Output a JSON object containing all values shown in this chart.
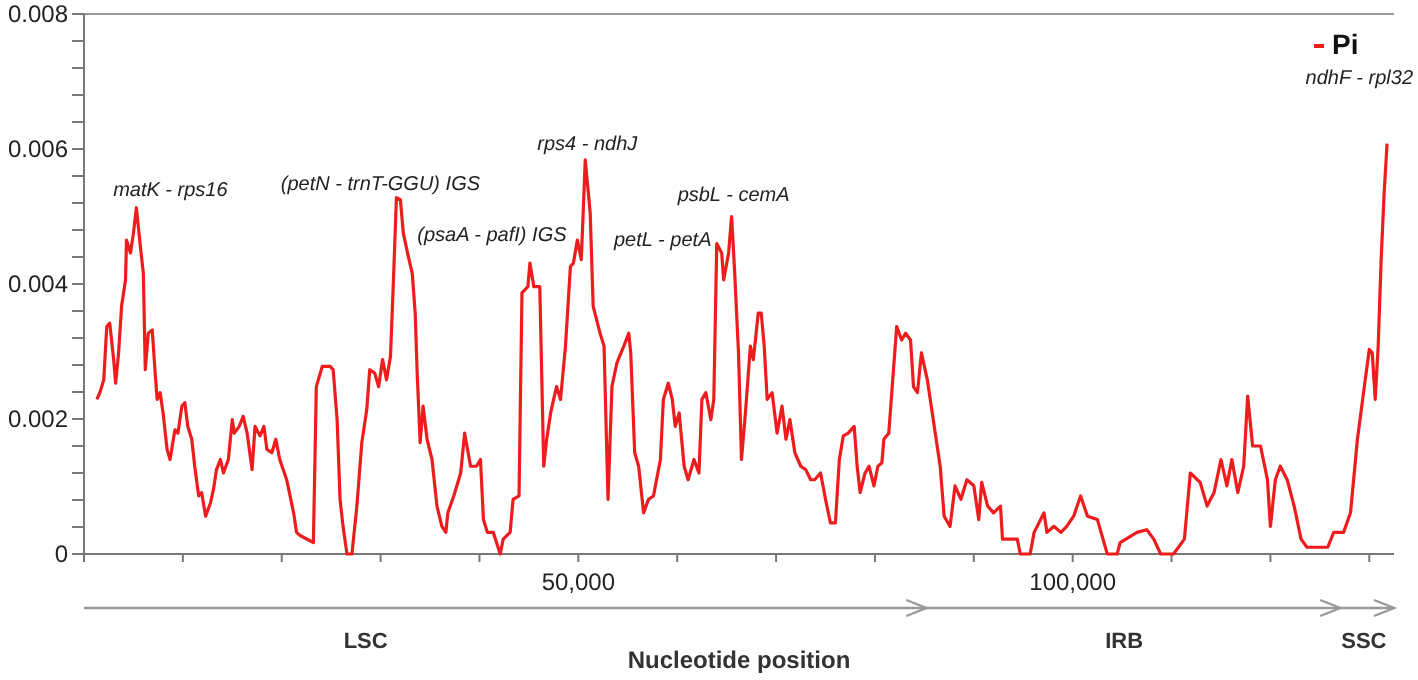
{
  "chart_data": {
    "type": "line",
    "xlabel": "Nucleotide position",
    "xlim": [
      0,
      132500
    ],
    "ylim": [
      0,
      0.008
    ],
    "xticks": [
      {
        "value": 0,
        "label": null
      },
      {
        "value": 10000,
        "label": null
      },
      {
        "value": 20000,
        "label": null
      },
      {
        "value": 30000,
        "label": null
      },
      {
        "value": 40000,
        "label": null
      },
      {
        "value": 50000,
        "label": "50,000"
      },
      {
        "value": 60000,
        "label": null
      },
      {
        "value": 70000,
        "label": null
      },
      {
        "value": 80000,
        "label": null
      },
      {
        "value": 90000,
        "label": null
      },
      {
        "value": 100000,
        "label": "100,000"
      },
      {
        "value": 110000,
        "label": null
      },
      {
        "value": 120000,
        "label": null
      },
      {
        "value": 130000,
        "label": null
      }
    ],
    "yticks": [
      0,
      {
        "value": 0.0004,
        "label": null
      },
      {
        "value": 0.0008,
        "label": null
      },
      {
        "value": 0.0012,
        "label": null
      },
      {
        "value": 0.0016,
        "label": null
      },
      0.002,
      {
        "value": 0.0024,
        "label": null
      },
      {
        "value": 0.0028,
        "label": null
      },
      {
        "value": 0.0032,
        "label": null
      },
      {
        "value": 0.0036,
        "label": null
      },
      0.004,
      {
        "value": 0.0044,
        "label": null
      },
      {
        "value": 0.0048,
        "label": null
      },
      {
        "value": 0.0052,
        "label": null
      },
      {
        "value": 0.0056,
        "label": null
      },
      0.006,
      {
        "value": 0.0064,
        "label": null
      },
      {
        "value": 0.0068,
        "label": null
      },
      {
        "value": 0.0072,
        "label": null
      },
      {
        "value": 0.0076,
        "label": null
      },
      0.008
    ],
    "grid": false,
    "legend": "top right",
    "marker": "none",
    "line_style": "solid",
    "series": [
      {
        "name": "Pi",
        "color": "#ee1c1c",
        "x": [
          1300,
          1600,
          2000,
          2300,
          2600,
          3000,
          3200,
          3500,
          3800,
          4200,
          4300,
          4700,
          5000,
          5300,
          5700,
          6000,
          6200,
          6500,
          6900,
          7200,
          7400,
          7700,
          8000,
          8400,
          8700,
          9200,
          9500,
          9900,
          10200,
          10500,
          10900,
          11200,
          11600,
          11900,
          12300,
          12800,
          13100,
          13400,
          13800,
          14100,
          14600,
          15000,
          15200,
          15700,
          16100,
          16500,
          17000,
          17300,
          17800,
          18200,
          18500,
          19000,
          19400,
          19800,
          20500,
          21200,
          21500,
          21900,
          23200,
          23500,
          24100,
          24900,
          25200,
          25600,
          25900,
          26200,
          26600,
          27100,
          27600,
          28100,
          28600,
          28900,
          29400,
          29800,
          30200,
          30600,
          31000,
          31300,
          31600,
          32000,
          32300,
          32800,
          33200,
          33500,
          33700,
          34000,
          34300,
          34700,
          35200,
          35700,
          36200,
          36600,
          36800,
          37400,
          38100,
          38500,
          39100,
          39700,
          40100,
          40400,
          40800,
          41400,
          42100,
          42400,
          43100,
          43400,
          44000,
          44300,
          44900,
          45100,
          45500,
          46100,
          46500,
          46800,
          47200,
          47500,
          47800,
          48200,
          48700,
          49200,
          49500,
          49900,
          50300,
          50700,
          51200,
          51500,
          52200,
          52600,
          53000,
          53400,
          53900,
          54600,
          55100,
          55300,
          55700,
          56100,
          56600,
          57100,
          57600,
          58300,
          58600,
          59100,
          59500,
          59800,
          60200,
          60700,
          61100,
          61700,
          62200,
          62500,
          62900,
          63400,
          63700,
          64000,
          64500,
          64700,
          65200,
          65500,
          65800,
          66200,
          66500,
          66900,
          67400,
          67700,
          68200,
          68500,
          68800,
          69100,
          69600,
          70100,
          70600,
          71000,
          71400,
          71900,
          72500,
          73000,
          73500,
          73900,
          74500,
          75000,
          75500,
          76000,
          76400,
          76800,
          77300,
          77900,
          78200,
          78500,
          79000,
          79400,
          79900,
          80300,
          80700,
          80900,
          81400,
          81900,
          82200,
          82700,
          83100,
          83600,
          83900,
          84300,
          84700,
          85300,
          86000,
          86600,
          87000,
          87600,
          88100,
          88700,
          89300,
          90000,
          90500,
          90800,
          91400,
          92000,
          92700,
          92900,
          94400,
          94700,
          95700,
          96100,
          97100,
          97400,
          98100,
          98800,
          99400,
          100100,
          100800,
          101500,
          102500,
          103500,
          104500,
          104800,
          106500,
          107500,
          108200,
          108900,
          110200,
          111300,
          111900,
          112900,
          113600,
          114300,
          115000,
          115600,
          116100,
          116700,
          117300,
          117700,
          118200,
          119000,
          119700,
          120000,
          120500,
          121000,
          121700,
          122400,
          123100,
          123700,
          124400,
          125800,
          126400,
          127400,
          128100,
          128800,
          129500,
          130000,
          130300,
          130600,
          130900,
          131200,
          131500,
          131800
        ],
        "values": [
          0.00229,
          0.00239,
          0.00258,
          0.00337,
          0.00342,
          0.00288,
          0.00253,
          0.00298,
          0.00367,
          0.00406,
          0.00465,
          0.00446,
          0.00475,
          0.00513,
          0.00456,
          0.00416,
          0.00273,
          0.00327,
          0.00332,
          0.00268,
          0.00229,
          0.00239,
          0.00209,
          0.00155,
          0.0014,
          0.00184,
          0.00179,
          0.00219,
          0.00224,
          0.00189,
          0.0017,
          0.0013,
          0.00086,
          0.00091,
          0.00056,
          0.00076,
          0.00096,
          0.00125,
          0.0014,
          0.0012,
          0.0014,
          0.00199,
          0.00179,
          0.00189,
          0.00204,
          0.00179,
          0.00125,
          0.00189,
          0.00175,
          0.00189,
          0.00155,
          0.0015,
          0.0017,
          0.0014,
          0.0011,
          0.00061,
          0.00032,
          0.00027,
          0.00017,
          0.00248,
          0.00278,
          0.00278,
          0.00273,
          0.00199,
          0.00081,
          0.00041,
          0,
          0,
          0.00071,
          0.00165,
          0.00214,
          0.00273,
          0.00268,
          0.00248,
          0.00288,
          0.00258,
          0.00293,
          0.00406,
          0.00528,
          0.00525,
          0.00475,
          0.00441,
          0.00416,
          0.00357,
          0.00268,
          0.00165,
          0.00219,
          0.0017,
          0.0014,
          0.00071,
          0.00041,
          0.00032,
          0.00061,
          0.00086,
          0.0012,
          0.00179,
          0.0013,
          0.0013,
          0.0014,
          0.00051,
          0.00032,
          0.00032,
          0,
          0.00022,
          0.00032,
          0.00081,
          0.00086,
          0.00387,
          0.00396,
          0.00431,
          0.00396,
          0.00396,
          0.0013,
          0.0017,
          0.00209,
          0.00229,
          0.00248,
          0.00229,
          0.00308,
          0.00426,
          0.00431,
          0.00465,
          0.00436,
          0.00584,
          0.00505,
          0.00367,
          0.00327,
          0.00308,
          0.00081,
          0.00248,
          0.00283,
          0.00308,
          0.00327,
          0.00298,
          0.0015,
          0.0013,
          0.00061,
          0.00081,
          0.00086,
          0.0014,
          0.00229,
          0.00253,
          0.00229,
          0.00189,
          0.00209,
          0.0013,
          0.0011,
          0.0014,
          0.0012,
          0.00229,
          0.00239,
          0.00199,
          0.00229,
          0.0046,
          0.00446,
          0.00406,
          0.00446,
          0.005,
          0.00421,
          0.00298,
          0.0014,
          0.00209,
          0.00308,
          0.00288,
          0.00357,
          0.00357,
          0.00308,
          0.00229,
          0.00239,
          0.00179,
          0.00219,
          0.0017,
          0.00199,
          0.0015,
          0.0013,
          0.00125,
          0.0011,
          0.0011,
          0.0012,
          0.00081,
          0.00046,
          0.00046,
          0.0014,
          0.00175,
          0.00179,
          0.00189,
          0.0013,
          0.00091,
          0.0012,
          0.0013,
          0.00101,
          0.0013,
          0.00135,
          0.0017,
          0.00179,
          0.00278,
          0.00337,
          0.00317,
          0.00327,
          0.00317,
          0.00248,
          0.00239,
          0.00298,
          0.00258,
          0.00189,
          0.0013,
          0.00056,
          0.00041,
          0.00101,
          0.00081,
          0.0011,
          0.00101,
          0.00051,
          0.00106,
          0.00071,
          0.00061,
          0.00071,
          0.00022,
          0.00022,
          0,
          0,
          0.00032,
          0.00061,
          0.00032,
          0.00041,
          0.00032,
          0.00041,
          0.00056,
          0.00086,
          0.00056,
          0.00051,
          0,
          0,
          0.00017,
          0.00032,
          0.00036,
          0.00022,
          0,
          0,
          0.00022,
          0.0012,
          0.00106,
          0.00071,
          0.00091,
          0.0014,
          0.00101,
          0.0014,
          0.00091,
          0.0013,
          0.00234,
          0.0016,
          0.0016,
          0.0011,
          0.00041,
          0.0011,
          0.0013,
          0.0011,
          0.00071,
          0.00022,
          0.0001,
          0.0001,
          0.0001,
          0.00032,
          0.00032,
          0.00061,
          0.0017,
          0.00248,
          0.00303,
          0.00298,
          0.00229,
          0.00308,
          0.00436,
          0.00534,
          0.00608
        ]
      }
    ],
    "annotations": [
      {
        "text": "matK - rps16",
        "x": 5300,
        "y": 0.00513
      },
      {
        "text": "(petN - trnT-GGU) IGS",
        "x": 31600,
        "y": 0.00528
      },
      {
        "text": "(psaA - pafI) IGS",
        "x": 45100,
        "y": 0.00431
      },
      {
        "text": "rps4 - ndhJ",
        "x": 50700,
        "y": 0.00584
      },
      {
        "text": "petL - petA",
        "x": 64000,
        "y": 0.0046
      },
      {
        "text": "psbL - cemA",
        "x": 65500,
        "y": 0.005
      },
      {
        "text": "ndhF - rpl32",
        "x": 131800,
        "y": 0.00608
      },
      "LSC",
      "IRB",
      "SSC"
    ]
  }
}
